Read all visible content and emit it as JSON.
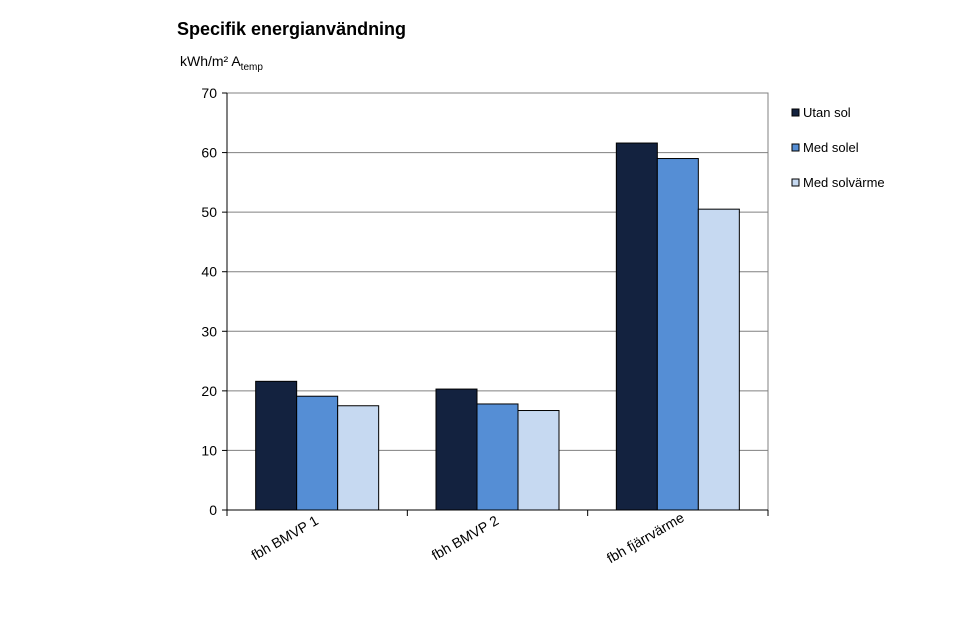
{
  "chart_data": {
    "type": "bar",
    "title": "Specifik energianvändning",
    "ylabel_main": "kWh/m² A",
    "ylabel_sub": "temp",
    "categories": [
      "fbh BMVP 1",
      "fbh BMVP 2",
      "fbh fjärrvärme"
    ],
    "series": [
      {
        "name": "Utan sol",
        "color": "#13223f",
        "values": [
          21.6,
          20.3,
          61.6
        ]
      },
      {
        "name": "Med solel",
        "color": "#558ed5",
        "values": [
          19.1,
          17.8,
          59.0
        ]
      },
      {
        "name": "Med solvärme",
        "color": "#c6d9f1",
        "values": [
          17.5,
          16.7,
          50.5
        ]
      }
    ],
    "ylim": [
      0,
      70
    ],
    "yticks": [
      0,
      10,
      20,
      30,
      40,
      50,
      60,
      70
    ],
    "grid": true,
    "legend": "right"
  }
}
